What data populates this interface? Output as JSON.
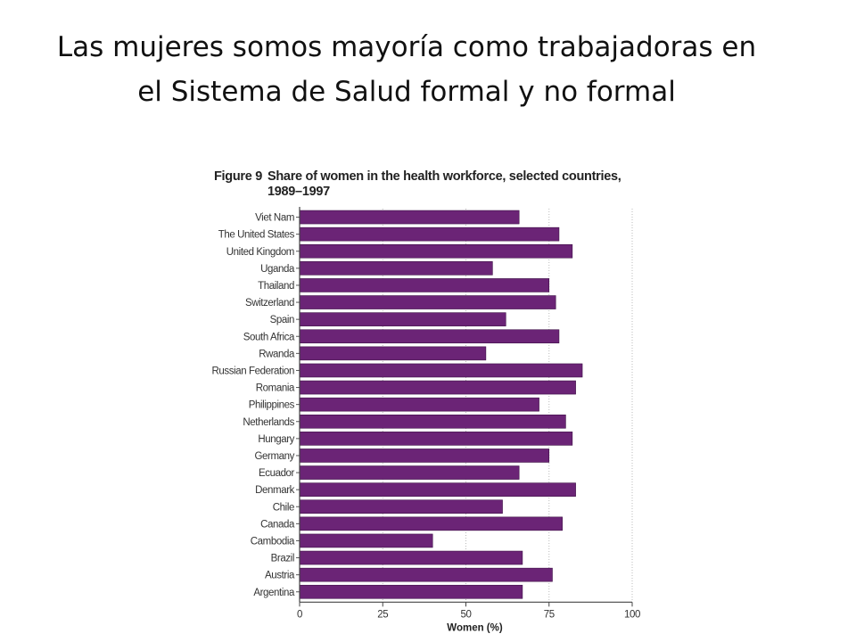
{
  "slide": {
    "title_line1": "Las mujeres somos mayoría como trabajadoras en",
    "title_line2": "el Sistema de Salud formal y no formal"
  },
  "figure": {
    "label": "Figure 9",
    "title": "Share of women in the health workforce, selected countries,\n1989–1997"
  },
  "chart_data": {
    "type": "bar",
    "orientation": "horizontal",
    "categories": [
      "Viet Nam",
      "The United States",
      "United Kingdom",
      "Uganda",
      "Thailand",
      "Switzerland",
      "Spain",
      "South Africa",
      "Rwanda",
      "Russian Federation",
      "Romania",
      "Philippines",
      "Netherlands",
      "Hungary",
      "Germany",
      "Ecuador",
      "Denmark",
      "Chile",
      "Canada",
      "Cambodia",
      "Brazil",
      "Austria",
      "Argentina"
    ],
    "values": [
      66,
      78,
      82,
      58,
      75,
      77,
      62,
      78,
      56,
      85,
      83,
      72,
      80,
      82,
      75,
      66,
      83,
      61,
      79,
      40,
      67,
      76,
      67
    ],
    "xlabel": "Women (%)",
    "xlim": [
      0,
      100
    ],
    "xticks": [
      "0",
      "25",
      "50",
      "75",
      "100"
    ],
    "grid": true,
    "bar_color": "#6b2476"
  }
}
